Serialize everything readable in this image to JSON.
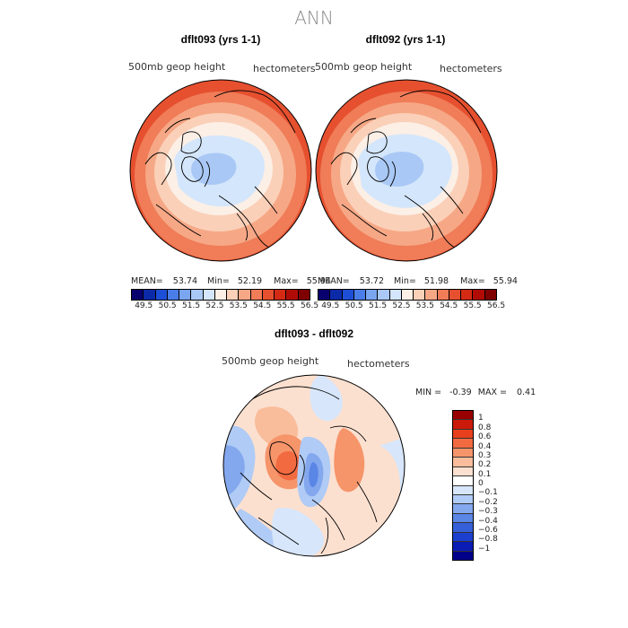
{
  "title": "ANN",
  "panels": [
    {
      "title": "dflt093 (yrs 1-1)",
      "var": "500mb geop height",
      "units": "hectometers",
      "stats": {
        "mean_label": "MEAN=",
        "mean": "53.74",
        "min_label": "Min=",
        "min": "52.19",
        "max_label": "Max=",
        "max": "55.94"
      }
    },
    {
      "title": "dflt092 (yrs 1-1)",
      "var": "500mb geop height",
      "units": "hectometers",
      "stats": {
        "mean_label": "MEAN=",
        "mean": "53.72",
        "min_label": "Min=",
        "min": "51.98",
        "max_label": "Max=",
        "max": "55.94"
      }
    }
  ],
  "diff": {
    "title": "dflt093 - dflt092",
    "var": "500mb geop height",
    "units": "hectometers",
    "stats": {
      "min_label": "MIN =",
      "min": "-0.39",
      "max_label": "MAX =",
      "max": "0.41"
    }
  },
  "colorbar_top": {
    "colors": [
      "#08006e",
      "#0b2aa8",
      "#1d4fd6",
      "#4a7de8",
      "#7aa6f0",
      "#a9c8f5",
      "#d4e6fb",
      "#fbefe6",
      "#fbd0b8",
      "#f6a886",
      "#f07c58",
      "#e6502f",
      "#d42a14",
      "#b00c05",
      "#7e0000"
    ],
    "ticks": [
      "49.5",
      "50.5",
      "51.5",
      "52.5",
      "53.5",
      "54.5",
      "55.5",
      "56.5"
    ]
  },
  "colorbar_diff": {
    "colors": [
      "#9a0000",
      "#cc1a0a",
      "#e8401c",
      "#f26a40",
      "#f6946a",
      "#f9bd9c",
      "#fce0cf",
      "#ffffff",
      "#d7e6fa",
      "#b0cbf5",
      "#84a8ee",
      "#5a86e6",
      "#3560da",
      "#1d3fcf",
      "#0a1cb3",
      "#020089"
    ],
    "ticks": [
      "1",
      "0.8",
      "0.6",
      "0.4",
      "0.3",
      "0.2",
      "0.1",
      "0",
      "−0.1",
      "−0.2",
      "−0.3",
      "−0.4",
      "−0.6",
      "−0.8",
      "−1"
    ]
  }
}
